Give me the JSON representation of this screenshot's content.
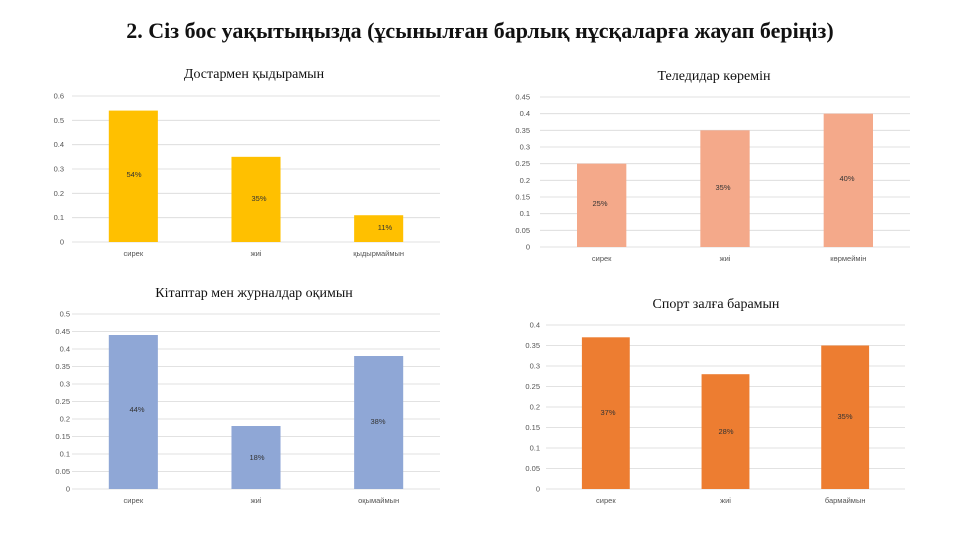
{
  "page_title": "2. Сіз бос уақытыңызда (ұсынылған барлық нұсқаларға жауап беріңіз)",
  "chart_data": [
    {
      "type": "bar",
      "title": "Достармен қыдырамын",
      "categories": [
        "сирек",
        "жиі",
        "қыдырмаймын"
      ],
      "values": [
        0.54,
        0.35,
        0.11
      ],
      "data_labels": [
        "54%",
        "35%",
        "11%"
      ],
      "ylim": [
        0,
        0.6
      ],
      "yticks": [
        "0",
        "0.1",
        "0.2",
        "0.3",
        "0.4",
        "0.5",
        "0.6"
      ],
      "color": "#FFC000",
      "grid": true
    },
    {
      "type": "bar",
      "title": "Теледидар көремін",
      "categories": [
        "сирек",
        "жиі",
        "көрмеймін"
      ],
      "values": [
        0.25,
        0.35,
        0.4
      ],
      "data_labels": [
        "25%",
        "35%",
        "40%"
      ],
      "ylim": [
        0,
        0.45
      ],
      "yticks": [
        "0",
        "0.05",
        "0.1",
        "0.15",
        "0.2",
        "0.25",
        "0.3",
        "0.35",
        "0.4",
        "0.45"
      ],
      "color": "#F4A98A",
      "grid": true
    },
    {
      "type": "bar",
      "title": "Кітаптар мен журналдар оқимын",
      "categories": [
        "сирек",
        "жиі",
        "оқымаймын"
      ],
      "values": [
        0.44,
        0.18,
        0.38
      ],
      "data_labels": [
        "44%",
        "18%",
        "38%"
      ],
      "ylim": [
        0,
        0.5
      ],
      "yticks": [
        "0",
        "0.05",
        "0.1",
        "0.15",
        "0.2",
        "0.25",
        "0.3",
        "0.35",
        "0.4",
        "0.45",
        "0.5"
      ],
      "color": "#8FA7D6",
      "grid": true
    },
    {
      "type": "bar",
      "title": "Спорт залға барамын",
      "categories": [
        "сирек",
        "жиі",
        "бармаймын"
      ],
      "values": [
        0.37,
        0.28,
        0.35
      ],
      "data_labels": [
        "37%",
        "28%",
        "35%"
      ],
      "ylim": [
        0,
        0.4
      ],
      "yticks": [
        "0",
        "0.05",
        "0.1",
        "0.15",
        "0.2",
        "0.25",
        "0.3",
        "0.35",
        "0.4"
      ],
      "color": "#ED7D31",
      "grid": true
    }
  ]
}
